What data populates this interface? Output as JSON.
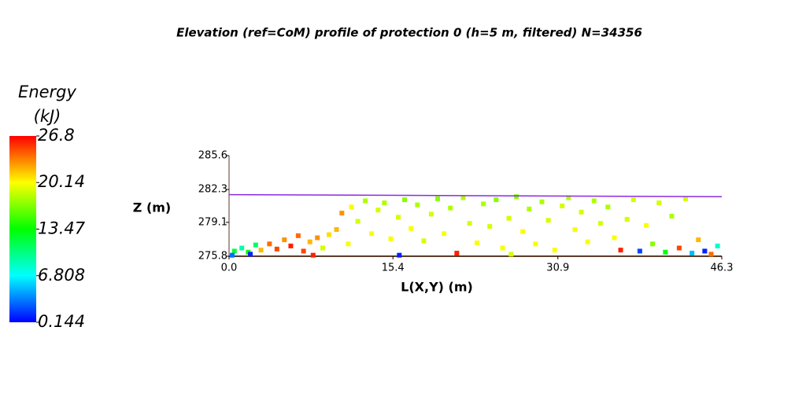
{
  "chart_data": {
    "type": "scatter",
    "title": "Elevation (ref=CoM) profile of protection 0 (h=5 m, filtered) N=34356",
    "xlabel": "L(X,Y) (m)",
    "ylabel": "Z (m)",
    "xlim": [
      0,
      46.3
    ],
    "ylim": [
      275.8,
      285.6
    ],
    "xticks": [
      {
        "value": 0,
        "label": "0.0"
      },
      15.4,
      30.9,
      46.3
    ],
    "yticks": [
      285.6,
      282.3,
      279.1,
      275.8
    ],
    "colorbar": {
      "title": [
        "Energy",
        "(kJ)"
      ],
      "lim": [
        0.144,
        26.8
      ],
      "ticks": [
        26.8,
        20.14,
        13.47,
        6.808,
        0.144
      ],
      "colormap": [
        "#0000ff",
        "#00ffff",
        "#00ff00",
        "#ffff00",
        "#ff0000"
      ]
    },
    "line": {
      "color": "#8a2be2",
      "x": [
        0,
        46.3
      ],
      "values": [
        281.8,
        281.6
      ]
    },
    "series": [
      {
        "marker": "square",
        "x": [
          0.5,
          1.2,
          1.8,
          2.5,
          3.0,
          3.8,
          4.5,
          5.2,
          5.8,
          6.5,
          7.0,
          7.6,
          8.3,
          8.8,
          9.4,
          10.1,
          10.6,
          11.2,
          11.5,
          12.1,
          12.8,
          13.4,
          14.0,
          14.6,
          15.2,
          15.9,
          16.5,
          17.1,
          17.7,
          18.3,
          19.0,
          19.6,
          20.2,
          20.8,
          21.4,
          22.0,
          22.6,
          23.3,
          23.9,
          24.5,
          25.1,
          25.7,
          26.3,
          27.0,
          27.6,
          28.2,
          28.8,
          29.4,
          30.0,
          30.6,
          31.3,
          31.9,
          32.5,
          33.1,
          33.7,
          34.3,
          34.9,
          35.6,
          36.2,
          36.8,
          37.4,
          38.0,
          38.6,
          39.2,
          39.8,
          40.4,
          41.0,
          41.6,
          42.3,
          42.9,
          43.5,
          44.1,
          44.7,
          45.3,
          45.9,
          0.3,
          2.0,
          7.9,
          16.0,
          26.5
        ],
        "values": [
          276.3,
          276.6,
          276.2,
          276.9,
          276.4,
          277.0,
          276.5,
          277.4,
          276.8,
          277.8,
          276.3,
          277.2,
          277.6,
          276.6,
          277.9,
          278.4,
          280.0,
          277.0,
          280.6,
          279.2,
          281.2,
          278.0,
          280.3,
          281.0,
          277.5,
          279.6,
          281.3,
          278.5,
          280.8,
          277.3,
          279.9,
          281.4,
          278.0,
          280.5,
          276.1,
          281.5,
          279.0,
          277.1,
          280.9,
          278.7,
          281.3,
          276.6,
          279.5,
          281.6,
          278.2,
          280.4,
          277.0,
          281.1,
          279.3,
          276.4,
          280.7,
          281.5,
          278.4,
          280.1,
          277.2,
          281.2,
          279.0,
          280.6,
          277.6,
          276.4,
          279.4,
          281.3,
          276.3,
          278.8,
          277.0,
          281.0,
          276.2,
          279.7,
          276.6,
          281.4,
          276.1,
          277.4,
          276.3,
          276.0,
          276.8,
          275.9,
          276.0,
          275.9,
          275.9,
          276.0
        ],
        "energy": [
          12,
          9,
          14,
          11,
          22,
          24,
          25,
          23,
          26,
          24,
          25,
          22,
          23,
          19,
          21,
          22,
          23,
          20,
          20,
          19,
          18,
          20,
          19,
          18,
          20,
          19,
          17,
          20,
          18,
          19,
          19,
          17,
          20,
          18,
          26,
          18,
          19,
          20,
          18,
          19,
          17,
          20,
          19,
          17,
          20,
          18,
          20,
          18,
          19,
          20,
          19,
          18,
          20,
          19,
          20,
          18,
          19,
          18,
          20,
          26,
          19,
          19,
          2,
          20,
          17,
          19,
          13,
          18,
          25,
          19,
          5,
          22,
          1,
          24,
          8,
          3,
          1,
          26,
          1,
          19
        ]
      }
    ]
  }
}
